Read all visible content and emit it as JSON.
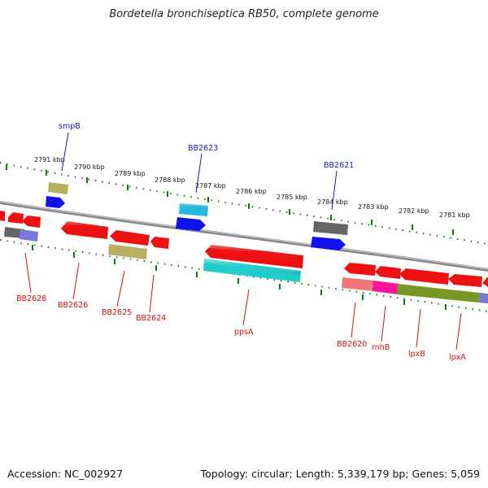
{
  "title": "Bordetella bronchiseptica RB50, complete genome",
  "footer": {
    "accession": "Accession: NC_002927",
    "stats": "Topology: circular; Length: 5,339,179 bp; Genes: 5,059"
  },
  "scale_labels": [
    "2791 kbp",
    "2790 kbp",
    "2789 kbp",
    "2788 kbp",
    "2787 kbp",
    "2786 kbp",
    "2785 kbp",
    "2784 kbp",
    "2783 kbp",
    "2782 kbp",
    "2781 kbp"
  ],
  "gene_labels_top": [
    "smpB",
    "BB2623",
    "BB2621"
  ],
  "gene_labels_bottom": [
    "BB2628",
    "BB2626",
    "BB2625",
    "BB2624",
    "ppsA",
    "BB2620",
    "rnhB",
    "lpxB",
    "lpxA"
  ],
  "colors": {
    "gene_red": "#ee1111",
    "gene_blue": "#1111ee",
    "gene_cyan": "#22bbdd",
    "gene_olive": "#b8b060",
    "gene_gray": "#666666",
    "gene_teal": "#22cccc",
    "gene_pink": "#ee7777",
    "gene_magenta": "#ff1199",
    "gene_green": "#779922",
    "gene_lavender": "#7777dd",
    "backbone": "#888888",
    "tick_green": "#117711"
  }
}
